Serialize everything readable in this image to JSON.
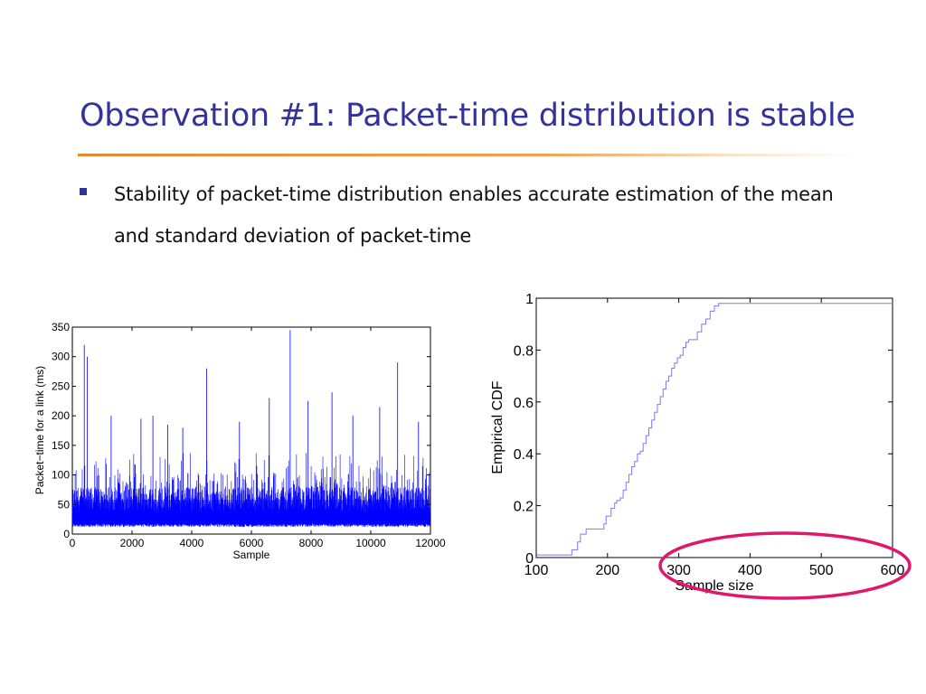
{
  "slide": {
    "title": "Observation #1: Packet-time distribution is stable",
    "bullet": "Stability of packet-time distribution enables accurate estimation of the mean and standard deviation of packet-time"
  },
  "colors": {
    "title": "#333399",
    "rule": "#e8872b",
    "series_left": "#0000ff",
    "series_right": "#7a7aff",
    "highlight": "#e0176b"
  },
  "chart_data": [
    {
      "type": "line",
      "title": "",
      "xlabel": "Sample",
      "ylabel": "Packet−time for a link (ms)",
      "xlim": [
        0,
        12000
      ],
      "ylim": [
        0,
        350
      ],
      "xticks": [
        0,
        2000,
        4000,
        6000,
        8000,
        10000,
        12000
      ],
      "yticks": [
        0,
        50,
        100,
        150,
        200,
        250,
        300,
        350
      ],
      "grid": false,
      "legend": "none",
      "series_note": "dense per-sample trace, baseline ~15-20 ms, bulk up to ~80 ms",
      "baseline_ms": 18,
      "typical_band_ms": [
        15,
        80
      ],
      "spikes": [
        {
          "x": 400,
          "y": 320
        },
        {
          "x": 500,
          "y": 300
        },
        {
          "x": 1300,
          "y": 200
        },
        {
          "x": 2300,
          "y": 195
        },
        {
          "x": 2700,
          "y": 200
        },
        {
          "x": 3200,
          "y": 185
        },
        {
          "x": 3700,
          "y": 180
        },
        {
          "x": 4500,
          "y": 280
        },
        {
          "x": 5600,
          "y": 190
        },
        {
          "x": 6600,
          "y": 230
        },
        {
          "x": 7300,
          "y": 345
        },
        {
          "x": 7900,
          "y": 225
        },
        {
          "x": 8700,
          "y": 240
        },
        {
          "x": 9400,
          "y": 200
        },
        {
          "x": 10300,
          "y": 215
        },
        {
          "x": 10900,
          "y": 290
        },
        {
          "x": 11600,
          "y": 190
        }
      ]
    },
    {
      "type": "line",
      "step": true,
      "title": "",
      "xlabel": "Sample size",
      "ylabel": "Empirical CDF",
      "xlim": [
        100,
        600
      ],
      "ylim": [
        0,
        1
      ],
      "xticks": [
        100,
        200,
        300,
        400,
        500,
        600
      ],
      "yticks": [
        0,
        0.2,
        0.4,
        0.6,
        0.8,
        1
      ],
      "ytick_labels": [
        "0",
        "0.2",
        "0.4",
        "0.6",
        "0.8",
        "1"
      ],
      "grid": false,
      "legend": "none",
      "x": [
        100,
        145,
        150,
        158,
        162,
        170,
        180,
        195,
        198,
        205,
        210,
        213,
        218,
        222,
        226,
        230,
        234,
        238,
        242,
        246,
        250,
        254,
        258,
        262,
        266,
        270,
        274,
        278,
        282,
        286,
        290,
        294,
        298,
        302,
        306,
        310,
        314,
        320,
        326,
        332,
        338,
        344,
        350,
        356,
        362,
        600
      ],
      "y": [
        0.01,
        0.01,
        0.03,
        0.06,
        0.09,
        0.11,
        0.11,
        0.13,
        0.16,
        0.19,
        0.21,
        0.22,
        0.23,
        0.26,
        0.29,
        0.32,
        0.35,
        0.37,
        0.4,
        0.41,
        0.44,
        0.47,
        0.5,
        0.53,
        0.56,
        0.59,
        0.62,
        0.65,
        0.68,
        0.7,
        0.73,
        0.75,
        0.77,
        0.78,
        0.81,
        0.83,
        0.84,
        0.84,
        0.87,
        0.9,
        0.92,
        0.95,
        0.97,
        0.98,
        0.98,
        0.98
      ]
    }
  ]
}
